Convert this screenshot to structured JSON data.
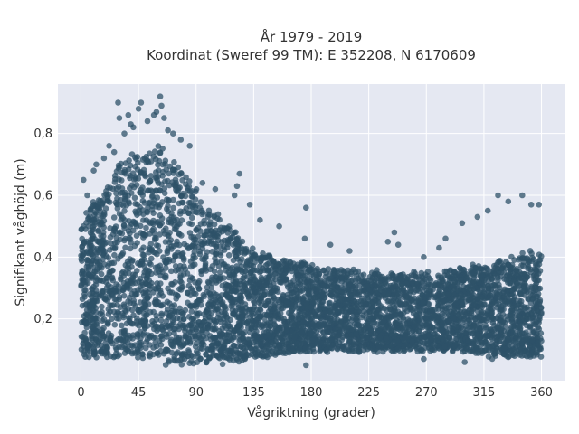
{
  "chart_data": {
    "type": "scatter",
    "title_line1": "År 1979 - 2019",
    "title_line2": "Koordinat (Sweref 99 TM): E 352208, N 6170609",
    "xlabel": "Vågriktning (grader)",
    "ylabel": "Signifikant våghöjd (m)",
    "xlim": [
      -18,
      378
    ],
    "ylim": [
      0.0,
      0.96
    ],
    "x_ticks": [
      0,
      45,
      90,
      135,
      180,
      225,
      270,
      315,
      360
    ],
    "x_tick_labels": [
      "0",
      "45",
      "90",
      "135",
      "180",
      "225",
      "270",
      "315",
      "360"
    ],
    "y_ticks": [
      0.2,
      0.4,
      0.6,
      0.8
    ],
    "y_tick_labels": [
      "0,2",
      "0,4",
      "0,6",
      "0,8"
    ],
    "grid": true,
    "marker_color": "#2e5268",
    "background_color": "#e5e8f2",
    "envelope": {
      "x": [
        0,
        5,
        10,
        15,
        20,
        25,
        30,
        35,
        40,
        45,
        50,
        55,
        60,
        65,
        70,
        75,
        80,
        85,
        90,
        95,
        100,
        105,
        110,
        115,
        120,
        125,
        130,
        135,
        140,
        145,
        150,
        155,
        160,
        165,
        170,
        175,
        180,
        190,
        200,
        210,
        220,
        230,
        240,
        250,
        260,
        270,
        280,
        290,
        300,
        310,
        320,
        330,
        340,
        350,
        360
      ],
      "upper": [
        0.5,
        0.55,
        0.58,
        0.6,
        0.63,
        0.66,
        0.7,
        0.72,
        0.74,
        0.72,
        0.73,
        0.75,
        0.76,
        0.75,
        0.72,
        0.7,
        0.68,
        0.64,
        0.62,
        0.58,
        0.56,
        0.54,
        0.52,
        0.5,
        0.48,
        0.46,
        0.44,
        0.43,
        0.42,
        0.41,
        0.4,
        0.4,
        0.39,
        0.39,
        0.38,
        0.38,
        0.37,
        0.36,
        0.36,
        0.36,
        0.35,
        0.35,
        0.35,
        0.35,
        0.35,
        0.35,
        0.35,
        0.36,
        0.36,
        0.37,
        0.38,
        0.39,
        0.4,
        0.41,
        0.42
      ],
      "lower": [
        0.08,
        0.08,
        0.08,
        0.08,
        0.08,
        0.08,
        0.08,
        0.08,
        0.08,
        0.08,
        0.08,
        0.07,
        0.07,
        0.06,
        0.06,
        0.06,
        0.05,
        0.05,
        0.05,
        0.05,
        0.05,
        0.06,
        0.06,
        0.07,
        0.07,
        0.07,
        0.07,
        0.08,
        0.08,
        0.08,
        0.08,
        0.09,
        0.09,
        0.09,
        0.09,
        0.1,
        0.1,
        0.1,
        0.1,
        0.1,
        0.1,
        0.1,
        0.1,
        0.1,
        0.1,
        0.1,
        0.1,
        0.1,
        0.1,
        0.09,
        0.08,
        0.08,
        0.08,
        0.08,
        0.08
      ]
    },
    "outliers": [
      {
        "x": 2,
        "y": 0.65
      },
      {
        "x": 5,
        "y": 0.6
      },
      {
        "x": 10,
        "y": 0.68
      },
      {
        "x": 12,
        "y": 0.7
      },
      {
        "x": 18,
        "y": 0.72
      },
      {
        "x": 22,
        "y": 0.76
      },
      {
        "x": 26,
        "y": 0.74
      },
      {
        "x": 29,
        "y": 0.9
      },
      {
        "x": 30,
        "y": 0.85
      },
      {
        "x": 34,
        "y": 0.8
      },
      {
        "x": 37,
        "y": 0.86
      },
      {
        "x": 39,
        "y": 0.83
      },
      {
        "x": 41,
        "y": 0.82
      },
      {
        "x": 45,
        "y": 0.88
      },
      {
        "x": 47,
        "y": 0.9
      },
      {
        "x": 52,
        "y": 0.84
      },
      {
        "x": 57,
        "y": 0.86
      },
      {
        "x": 59,
        "y": 0.87
      },
      {
        "x": 62,
        "y": 0.92
      },
      {
        "x": 63,
        "y": 0.89
      },
      {
        "x": 65,
        "y": 0.85
      },
      {
        "x": 68,
        "y": 0.81
      },
      {
        "x": 72,
        "y": 0.8
      },
      {
        "x": 78,
        "y": 0.78
      },
      {
        "x": 85,
        "y": 0.76
      },
      {
        "x": 95,
        "y": 0.64
      },
      {
        "x": 105,
        "y": 0.62
      },
      {
        "x": 120,
        "y": 0.6
      },
      {
        "x": 122,
        "y": 0.63
      },
      {
        "x": 124,
        "y": 0.67
      },
      {
        "x": 132,
        "y": 0.57
      },
      {
        "x": 140,
        "y": 0.52
      },
      {
        "x": 155,
        "y": 0.5
      },
      {
        "x": 175,
        "y": 0.46
      },
      {
        "x": 176,
        "y": 0.56
      },
      {
        "x": 195,
        "y": 0.44
      },
      {
        "x": 210,
        "y": 0.42
      },
      {
        "x": 213,
        "y": 0.36
      },
      {
        "x": 240,
        "y": 0.45
      },
      {
        "x": 245,
        "y": 0.48
      },
      {
        "x": 248,
        "y": 0.44
      },
      {
        "x": 268,
        "y": 0.4
      },
      {
        "x": 280,
        "y": 0.43
      },
      {
        "x": 285,
        "y": 0.46
      },
      {
        "x": 298,
        "y": 0.51
      },
      {
        "x": 310,
        "y": 0.53
      },
      {
        "x": 318,
        "y": 0.55
      },
      {
        "x": 326,
        "y": 0.6
      },
      {
        "x": 334,
        "y": 0.58
      },
      {
        "x": 345,
        "y": 0.6
      },
      {
        "x": 352,
        "y": 0.57
      },
      {
        "x": 358,
        "y": 0.57
      },
      {
        "x": 176,
        "y": 0.05
      },
      {
        "x": 268,
        "y": 0.07
      },
      {
        "x": 300,
        "y": 0.06
      }
    ]
  }
}
